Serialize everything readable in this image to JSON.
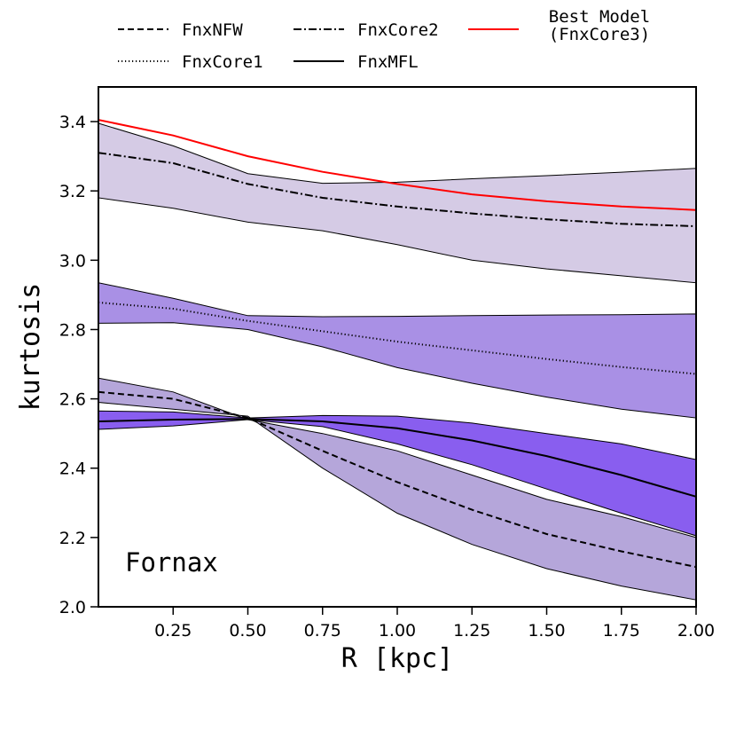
{
  "chart_data": {
    "type": "line",
    "title": "",
    "xlabel": "R [kpc]",
    "ylabel": "kurtosis",
    "annotation": "Fornax",
    "xlim": [
      0.0,
      2.0
    ],
    "ylim": [
      2.0,
      3.5
    ],
    "xticks": [
      0.25,
      0.5,
      0.75,
      1.0,
      1.25,
      1.5,
      1.75,
      2.0
    ],
    "xtick_labels": [
      "0.25",
      "0.50",
      "0.75",
      "1.00",
      "1.25",
      "1.50",
      "1.75",
      "2.00"
    ],
    "yticks": [
      2.0,
      2.2,
      2.4,
      2.6,
      2.8,
      3.0,
      3.2,
      3.4
    ],
    "ytick_labels": [
      "2.0",
      "2.2",
      "2.4",
      "2.6",
      "2.8",
      "3.0",
      "3.2",
      "3.4"
    ],
    "x": [
      0.0,
      0.25,
      0.5,
      0.75,
      1.0,
      1.25,
      1.5,
      1.75,
      2.0
    ],
    "series": [
      {
        "name": "FnxNFW",
        "style": "dashed",
        "color": "#000000",
        "values": [
          2.62,
          2.6,
          2.545,
          2.45,
          2.36,
          2.28,
          2.21,
          2.16,
          2.115
        ],
        "band_upper": [
          2.66,
          2.62,
          2.54,
          2.5,
          2.45,
          2.38,
          2.31,
          2.26,
          2.2
        ],
        "band_lower": [
          2.59,
          2.57,
          2.55,
          2.4,
          2.27,
          2.18,
          2.11,
          2.06,
          2.02
        ],
        "band_color": "#a896d3"
      },
      {
        "name": "FnxCore1",
        "style": "dotted",
        "color": "#000000",
        "values": [
          2.878,
          2.86,
          2.825,
          2.795,
          2.765,
          2.74,
          2.715,
          2.692,
          2.672
        ],
        "band_upper": [
          2.935,
          2.89,
          2.84,
          2.837,
          2.838,
          2.84,
          2.842,
          2.843,
          2.845
        ],
        "band_lower": [
          2.818,
          2.82,
          2.8,
          2.75,
          2.69,
          2.645,
          2.605,
          2.57,
          2.545
        ],
        "band_color": "#9a7de0"
      },
      {
        "name": "FnxCore2",
        "style": "dashdot",
        "color": "#000000",
        "values": [
          3.31,
          3.28,
          3.22,
          3.18,
          3.155,
          3.135,
          3.118,
          3.105,
          3.098
        ],
        "band_upper": [
          3.395,
          3.33,
          3.25,
          3.222,
          3.225,
          3.235,
          3.244,
          3.254,
          3.265
        ],
        "band_lower": [
          3.18,
          3.15,
          3.11,
          3.085,
          3.045,
          3.0,
          2.975,
          2.955,
          2.935
        ],
        "band_color": "#cec2e1"
      },
      {
        "name": "FnxMFL",
        "style": "solid",
        "color": "#000000",
        "values": [
          2.535,
          2.54,
          2.542,
          2.535,
          2.515,
          2.48,
          2.435,
          2.38,
          2.318
        ],
        "band_upper": [
          2.565,
          2.562,
          2.545,
          2.552,
          2.55,
          2.53,
          2.5,
          2.47,
          2.425
        ],
        "band_lower": [
          2.512,
          2.522,
          2.54,
          2.52,
          2.47,
          2.41,
          2.34,
          2.27,
          2.205
        ],
        "band_color": "#7442ec"
      },
      {
        "name": "Best Model\n(FnxCore3)",
        "style": "solid",
        "color": "#ff0000",
        "values": [
          3.405,
          3.36,
          3.3,
          3.255,
          3.22,
          3.19,
          3.17,
          3.155,
          3.145
        ]
      }
    ],
    "legend_position": "top"
  }
}
